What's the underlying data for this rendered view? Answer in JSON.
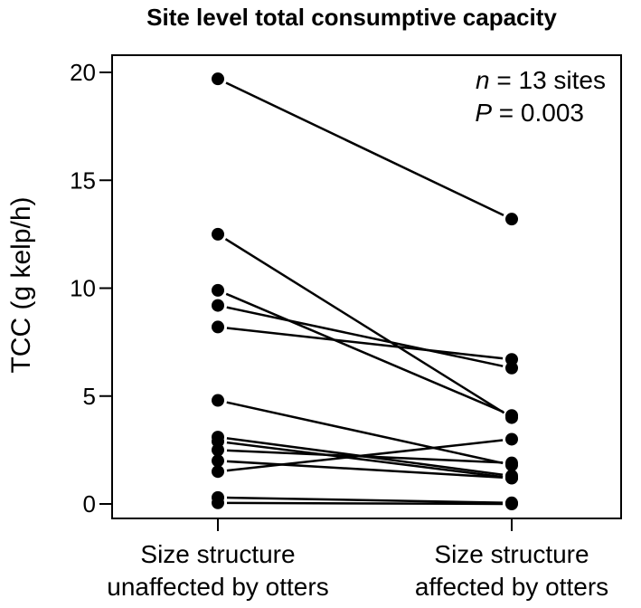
{
  "chart_data": {
    "type": "line",
    "title": "Site level total consumptive capacity",
    "ylabel": "TCC (g kelp/h)",
    "xlabel": "",
    "categories": [
      "Size structure\nunaffected by otters",
      "Size structure\naffected by otters"
    ],
    "ylim": [
      0,
      20
    ],
    "yticks": [
      "0",
      "5",
      "10",
      "15",
      "20"
    ],
    "grid": false,
    "annotation": {
      "n_var": "n",
      "n_rest": " = 13 sites",
      "p_var": "P",
      "p_rest": " = 0.003"
    },
    "series": [
      {
        "values": [
          19.7,
          13.2
        ]
      },
      {
        "values": [
          12.5,
          4.0
        ]
      },
      {
        "values": [
          9.9,
          4.1
        ]
      },
      {
        "values": [
          9.2,
          6.3
        ]
      },
      {
        "values": [
          8.2,
          6.7
        ]
      },
      {
        "values": [
          4.8,
          1.8
        ]
      },
      {
        "values": [
          3.1,
          1.3
        ]
      },
      {
        "values": [
          2.9,
          1.2
        ]
      },
      {
        "values": [
          2.5,
          1.9
        ]
      },
      {
        "values": [
          2.0,
          1.2
        ]
      },
      {
        "values": [
          1.5,
          3.0
        ]
      },
      {
        "values": [
          0.3,
          0.05
        ]
      },
      {
        "values": [
          0.05,
          0.0
        ]
      }
    ]
  }
}
